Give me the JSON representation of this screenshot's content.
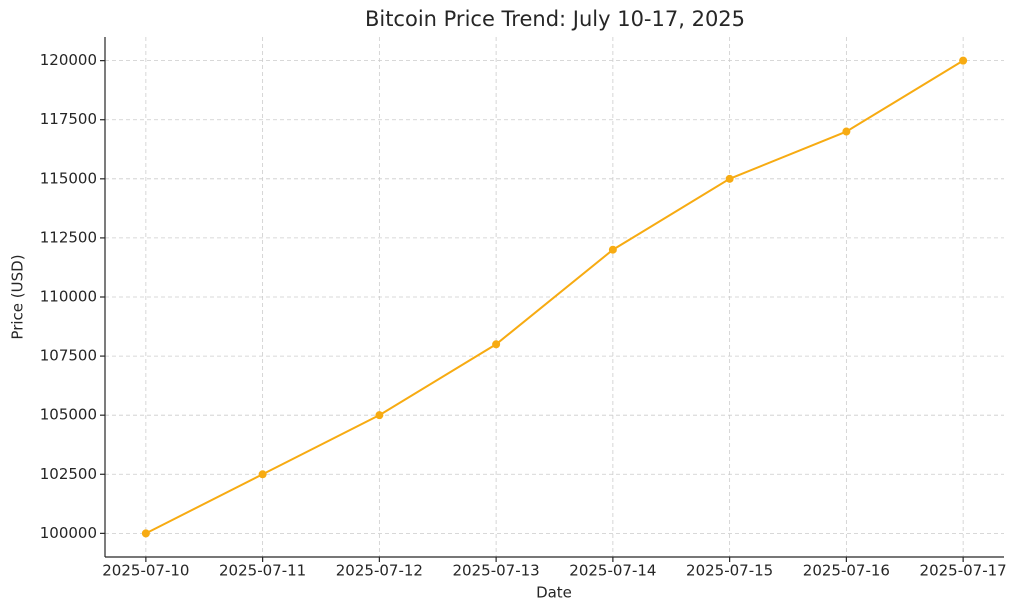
{
  "chart_data": {
    "type": "line",
    "title": "Bitcoin Price Trend: July 10-17, 2025",
    "x_label": "Date",
    "y_label": "Price (USD)",
    "categories": [
      "2025-07-10",
      "2025-07-11",
      "2025-07-12",
      "2025-07-13",
      "2025-07-14",
      "2025-07-15",
      "2025-07-16",
      "2025-07-17"
    ],
    "values": [
      100000,
      102500,
      105000,
      108000,
      112000,
      115000,
      117000,
      120000
    ],
    "color": "#f7ab12",
    "ylim": [
      99000,
      121000
    ],
    "yticks": [
      100000,
      102500,
      105000,
      107500,
      110000,
      112500,
      115000,
      117500,
      120000
    ],
    "grid": true
  }
}
